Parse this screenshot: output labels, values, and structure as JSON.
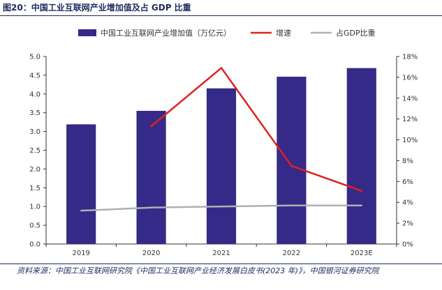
{
  "figure": {
    "title": "图20：中国工业互联网产业增加值及占 GDP 比重",
    "source": "资料来源：中国工业互联网研究院《中国工业互联网产业经济发展白皮书(2023 年)》，中国银河证券研究院"
  },
  "chart_data": {
    "type": "bar",
    "categories": [
      "2019",
      "2020",
      "2021",
      "2022",
      "2023E"
    ],
    "series": [
      {
        "name": "中国工业互联网产业增加值（万亿元）",
        "type": "bar",
        "axis": "left",
        "color": "#352a87",
        "values": [
          3.19,
          3.55,
          4.15,
          4.46,
          4.69
        ]
      },
      {
        "name": "增速",
        "type": "line",
        "axis": "right",
        "color": "#e02020",
        "values": [
          null,
          11.3,
          16.9,
          7.5,
          5.1
        ]
      },
      {
        "name": "占GDP比重",
        "type": "line",
        "axis": "right",
        "color": "#b0b0b0",
        "values": [
          3.2,
          3.5,
          3.6,
          3.7,
          3.7
        ]
      }
    ],
    "yleft": {
      "min": 0,
      "max": 5,
      "ticks": [
        "0.0",
        "0.5",
        "1.0",
        "1.5",
        "2.0",
        "2.5",
        "3.0",
        "3.5",
        "4.0",
        "4.5",
        "5.0"
      ]
    },
    "yright": {
      "min": 0,
      "max": 18,
      "ticks": [
        "0%",
        "2%",
        "4%",
        "6%",
        "8%",
        "10%",
        "12%",
        "14%",
        "16%",
        "18%"
      ]
    },
    "grid": false,
    "legend": "top"
  }
}
